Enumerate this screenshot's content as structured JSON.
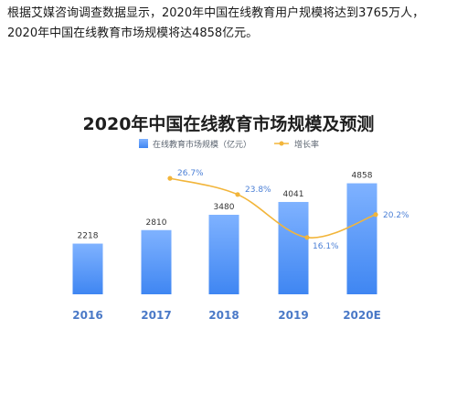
{
  "intro_text": "根据艾媒咨询调查数据显示，2020年中国在线教育用户规模将达到3765万人，2020年中国在线教育市场规模将达4858亿元。",
  "chart_data": {
    "type": "bar+line",
    "title": "2020年中国在线教育市场规模及预测",
    "categories": [
      "2016",
      "2017",
      "2018",
      "2019",
      "2020E"
    ],
    "series": [
      {
        "name": "在线教育市场规模（亿元）",
        "kind": "bar",
        "values": [
          2218,
          2810,
          3480,
          4041,
          4858
        ],
        "value_labels": [
          "2218",
          "2810",
          "3480",
          "4041",
          "4858"
        ],
        "color_top": "#7fb2ff",
        "color_bottom": "#3f86f2"
      },
      {
        "name": "增长率",
        "kind": "line",
        "x": [
          "2017",
          "2018",
          "2019",
          "2020E"
        ],
        "values": [
          26.7,
          23.8,
          16.1,
          20.2
        ],
        "value_labels": [
          "26.7%",
          "23.8%",
          "16.1%",
          "20.2%"
        ],
        "color": "#f2b53a"
      }
    ],
    "bar_axis_range": [
      0,
      6000
    ],
    "rate_axis_range": [
      0,
      40
    ],
    "grid": false,
    "legend_position": "top-center"
  }
}
